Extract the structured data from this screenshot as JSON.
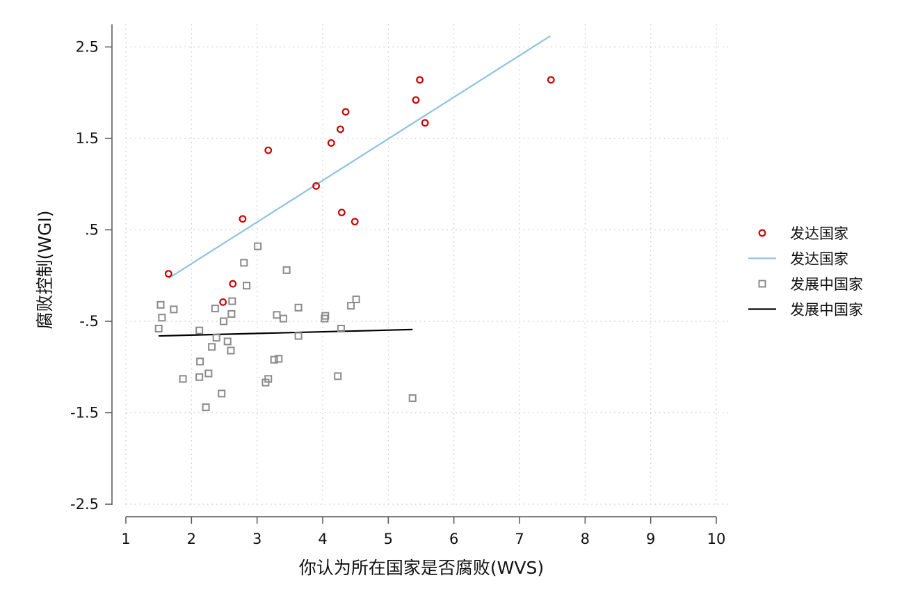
{
  "chart_data": {
    "type": "scatter",
    "xlabel": "你认为所在国家是否腐败(WVS)",
    "ylabel": "腐败控制(WGI)",
    "xlim": [
      1,
      10
    ],
    "ylim": [
      -2.5,
      2.6
    ],
    "x_ticks": [
      {
        "value": 1,
        "label": "1"
      },
      {
        "value": 2,
        "label": "2"
      },
      {
        "value": 3,
        "label": "3"
      },
      {
        "value": 4,
        "label": "4"
      },
      {
        "value": 5,
        "label": "5"
      },
      {
        "value": 6,
        "label": "6"
      },
      {
        "value": 7,
        "label": "7"
      },
      {
        "value": 8,
        "label": "8"
      },
      {
        "value": 9,
        "label": "9"
      },
      {
        "value": 10,
        "label": "10"
      }
    ],
    "y_ticks": [
      {
        "value": 2.5,
        "label": "2.5"
      },
      {
        "value": 1.5,
        "label": "1.5"
      },
      {
        "value": 0.5,
        "label": ".5"
      },
      {
        "value": -0.5,
        "label": "-.5"
      },
      {
        "value": -1.5,
        "label": "-1.5"
      },
      {
        "value": -2.5,
        "label": "-2.5"
      }
    ],
    "grid": true,
    "legend_position": "right",
    "series": [
      {
        "name": "发达国家",
        "kind": "scatter",
        "marker": "circle",
        "color": "#cc0000",
        "points": [
          [
            1.65,
            0.02
          ],
          [
            2.48,
            -0.29
          ],
          [
            2.63,
            -0.09
          ],
          [
            2.78,
            0.62
          ],
          [
            3.17,
            1.37
          ],
          [
            3.9,
            0.98
          ],
          [
            4.13,
            1.45
          ],
          [
            4.27,
            1.6
          ],
          [
            4.29,
            0.69
          ],
          [
            4.35,
            1.79
          ],
          [
            4.49,
            0.59
          ],
          [
            5.42,
            1.92
          ],
          [
            5.48,
            2.14
          ],
          [
            5.56,
            1.67
          ],
          [
            7.48,
            2.14
          ]
        ]
      },
      {
        "name": "发达国家",
        "kind": "line",
        "color": "#8fc1e6",
        "points": [
          [
            1.65,
            -0.03
          ],
          [
            7.47,
            2.62
          ]
        ]
      },
      {
        "name": "发展中国家",
        "kind": "scatter",
        "marker": "square",
        "color": "#8a8a8a",
        "points": [
          [
            1.5,
            -0.58
          ],
          [
            1.53,
            -0.32
          ],
          [
            1.55,
            -0.46
          ],
          [
            1.73,
            -0.37
          ],
          [
            1.87,
            -1.13
          ],
          [
            2.12,
            -1.11
          ],
          [
            2.12,
            -0.6
          ],
          [
            2.13,
            -0.94
          ],
          [
            2.22,
            -1.44
          ],
          [
            2.26,
            -1.07
          ],
          [
            2.31,
            -0.78
          ],
          [
            2.36,
            -0.36
          ],
          [
            2.38,
            -0.68
          ],
          [
            2.46,
            -1.29
          ],
          [
            2.49,
            -0.5
          ],
          [
            2.55,
            -0.72
          ],
          [
            2.6,
            -0.82
          ],
          [
            2.61,
            -0.42
          ],
          [
            2.62,
            -0.28
          ],
          [
            2.8,
            0.14
          ],
          [
            2.84,
            -0.11
          ],
          [
            3.01,
            0.32
          ],
          [
            3.13,
            -1.17
          ],
          [
            3.17,
            -1.13
          ],
          [
            3.26,
            -0.92
          ],
          [
            3.3,
            -0.43
          ],
          [
            3.33,
            -0.91
          ],
          [
            3.4,
            -0.47
          ],
          [
            3.45,
            0.06
          ],
          [
            3.63,
            -0.35
          ],
          [
            3.63,
            -0.66
          ],
          [
            4.03,
            -0.47
          ],
          [
            4.04,
            -0.44
          ],
          [
            4.23,
            -1.1
          ],
          [
            4.28,
            -0.58
          ],
          [
            4.43,
            -0.33
          ],
          [
            4.51,
            -0.26
          ],
          [
            5.37,
            -1.34
          ]
        ]
      },
      {
        "name": "发展中国家",
        "kind": "line",
        "color": "#000000",
        "points": [
          [
            1.5,
            -0.66
          ],
          [
            5.37,
            -0.59
          ]
        ]
      }
    ]
  }
}
